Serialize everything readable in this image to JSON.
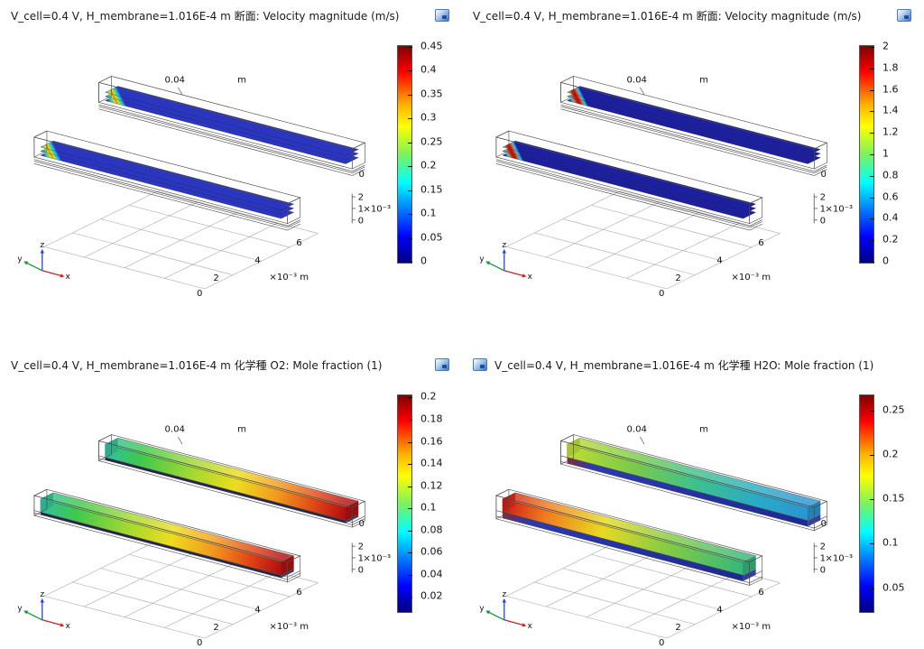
{
  "page": {
    "background": "#ffffff"
  },
  "axes": {
    "length_tick": "0.04",
    "length_unit": "m",
    "y_zero_tick": "0",
    "z_ticks": [
      "2",
      "1",
      "0"
    ],
    "z_unit": "×10⁻³",
    "x_ticks": [
      "2",
      "4",
      "6"
    ],
    "x_origin_tick": "0",
    "x_unit": "×10⁻³ m",
    "triad": {
      "x_label": "x",
      "y_label": "y",
      "z_label": "z",
      "x_color": "#cc2222",
      "y_color": "#119933",
      "z_color": "#2244cc"
    }
  },
  "colormap": [
    [
      "#7f0000",
      0
    ],
    [
      "#ff0000",
      12
    ],
    [
      "#ffb000",
      27
    ],
    [
      "#ffff00",
      37
    ],
    [
      "#7cf25c",
      50
    ],
    [
      "#00ffff",
      63
    ],
    [
      "#0080ff",
      75
    ],
    [
      "#0000ff",
      88
    ],
    [
      "#00007f",
      100
    ]
  ],
  "panels": [
    {
      "id": "velocity-1",
      "title": "V_cell=0.4 V, H_membrane=1.016E-4 m  断面: Velocity magnitude (m/s)",
      "icon_side": "right",
      "colorbar": {
        "ticks": [
          "0.45",
          "0.4",
          "0.35",
          "0.3",
          "0.25",
          "0.2",
          "0.15",
          "0.1",
          "0.05",
          "0"
        ],
        "t0": 0.004,
        "t1": 0.996
      },
      "scene": {
        "mode": "slices",
        "cross_stops": [
          [
            0,
            "#2a35c0"
          ],
          [
            0.15,
            "#19b6e8"
          ],
          [
            0.32,
            "#7ee24a"
          ],
          [
            0.45,
            "#f2d51e"
          ],
          [
            0.5,
            "#e8401a"
          ],
          [
            0.55,
            "#f2d51e"
          ],
          [
            0.68,
            "#7ee24a"
          ],
          [
            0.85,
            "#19b6e8"
          ],
          [
            1,
            "#2a35c0"
          ]
        ]
      }
    },
    {
      "id": "velocity-2",
      "title": "V_cell=0.4 V, H_membrane=1.016E-4 m  断面: Velocity magnitude (m/s)",
      "icon_side": "right",
      "colorbar": {
        "ticks": [
          "2",
          "1.8",
          "1.6",
          "1.4",
          "1.2",
          "1",
          "0.8",
          "0.6",
          "0.4",
          "0.2",
          "0"
        ],
        "t0": 0.004,
        "t1": 0.996
      },
      "scene": {
        "mode": "slices",
        "cross_stops": [
          [
            0,
            "#1c1f9e"
          ],
          [
            0.09,
            "#1e8fe0"
          ],
          [
            0.18,
            "#30c8e8"
          ],
          [
            0.3,
            "#e06018"
          ],
          [
            0.42,
            "#c01212"
          ],
          [
            0.58,
            "#c01212"
          ],
          [
            0.7,
            "#e06018"
          ],
          [
            0.82,
            "#30c8e8"
          ],
          [
            0.91,
            "#1e8fe0"
          ],
          [
            1,
            "#1c1f9e"
          ]
        ]
      }
    },
    {
      "id": "o2-mole-fraction",
      "title": "V_cell=0.4 V, H_membrane=1.016E-4 m  化学種 O2:  Mole fraction (1)",
      "icon_side": "right",
      "colorbar": {
        "ticks": [
          "0.2",
          "0.18",
          "0.16",
          "0.14",
          "0.12",
          "0.1",
          "0.08",
          "0.06",
          "0.04",
          "0.02"
        ],
        "t0": 0.01,
        "t1": 0.93
      },
      "scene": {
        "mode": "bars",
        "back_stops": [
          [
            0,
            "#2fc0a8"
          ],
          [
            0.15,
            "#3ec84e"
          ],
          [
            0.38,
            "#a8d930"
          ],
          [
            0.55,
            "#ecdc1e"
          ],
          [
            0.72,
            "#f29a1e"
          ],
          [
            0.88,
            "#e04414"
          ],
          [
            1,
            "#b31010"
          ]
        ],
        "front_stops": [
          [
            0,
            "#2fc0a8"
          ],
          [
            0.15,
            "#3ec84e"
          ],
          [
            0.38,
            "#a8d930"
          ],
          [
            0.55,
            "#ecdc1e"
          ],
          [
            0.72,
            "#f29a1e"
          ],
          [
            0.88,
            "#e04414"
          ],
          [
            1,
            "#b31010"
          ]
        ],
        "sub": {
          "h": 3,
          "stops": [
            [
              0,
              "#23234d"
            ],
            [
              1,
              "#23234d"
            ]
          ]
        }
      }
    },
    {
      "id": "h2o-mole-fraction",
      "title": "V_cell=0.4 V, H_membrane=1.016E-4 m  化学種 H2O:  Mole fraction (1)",
      "icon_side": "left",
      "colorbar": {
        "ticks": [
          "0.25",
          "0.2",
          "0.15",
          "0.1",
          "0.05"
        ],
        "t0": 0.07,
        "t1": 0.89
      },
      "scene": {
        "mode": "bars",
        "back_stops": [
          [
            0,
            "#c2dc32"
          ],
          [
            0.28,
            "#7bca4b"
          ],
          [
            0.55,
            "#3cc08e"
          ],
          [
            0.8,
            "#2aaac6"
          ],
          [
            1,
            "#2b96d2"
          ]
        ],
        "front_stops": [
          [
            0,
            "#cc1616"
          ],
          [
            0.18,
            "#ef7a1e"
          ],
          [
            0.42,
            "#e8d922"
          ],
          [
            0.68,
            "#86cc42"
          ],
          [
            1,
            "#36b87a"
          ]
        ],
        "sub": {
          "h": 7,
          "stops": [
            [
              0,
              "#93252b"
            ],
            [
              0.12,
              "#2b3ab2"
            ],
            [
              1,
              "#1b2a96"
            ]
          ]
        }
      }
    }
  ],
  "chart_data": [
    {
      "type": "3d-slice-plot",
      "title": "V_cell=0.4 V, H_membrane=1.016E-4 m 断面: Velocity magnitude (m/s)",
      "quantity": "Velocity magnitude",
      "unit": "m/s",
      "color_range": [
        0,
        0.45
      ],
      "colorbar_ticks": [
        0.45,
        0.4,
        0.35,
        0.3,
        0.25,
        0.2,
        0.15,
        0.1,
        0.05,
        0
      ],
      "x_axis": {
        "ticks": [
          0,
          2,
          4,
          6
        ],
        "unit": "×10⁻³ m"
      },
      "y_axis": {
        "ticks": [
          0,
          0.04
        ],
        "unit": "m"
      },
      "z_axis": {
        "ticks": [
          0,
          1,
          2
        ],
        "unit": "×10⁻³"
      },
      "colormap": "rainbow",
      "geometry": "two parallel fuel-cell gas channels, velocity slices blue at walls and red at core"
    },
    {
      "type": "3d-slice-plot",
      "title": "V_cell=0.4 V, H_membrane=1.016E-4 m 断面: Velocity magnitude (m/s)",
      "quantity": "Velocity magnitude",
      "unit": "m/s",
      "color_range": [
        0,
        2
      ],
      "colorbar_ticks": [
        2,
        1.8,
        1.6,
        1.4,
        1.2,
        1,
        0.8,
        0.6,
        0.4,
        0.2,
        0
      ],
      "x_axis": {
        "ticks": [
          0,
          2,
          4,
          6
        ],
        "unit": "×10⁻³ m"
      },
      "y_axis": {
        "ticks": [
          0,
          0.04
        ],
        "unit": "m"
      },
      "z_axis": {
        "ticks": [
          0,
          1,
          2
        ],
        "unit": "×10⁻³"
      },
      "colormap": "rainbow",
      "geometry": "two parallel fuel-cell gas channels, velocity slices blue at walls and red at core"
    },
    {
      "type": "3d-volume-plot",
      "title": "V_cell=0.4 V, H_membrane=1.016E-4 m 化学種 O2: Mole fraction (1)",
      "quantity": "O2 mole fraction",
      "unit": "1",
      "color_range": [
        0.02,
        0.2
      ],
      "colorbar_ticks": [
        0.2,
        0.18,
        0.16,
        0.14,
        0.12,
        0.1,
        0.08,
        0.06,
        0.04,
        0.02
      ],
      "x_axis": {
        "ticks": [
          0,
          2,
          4,
          6
        ],
        "unit": "×10⁻³ m"
      },
      "y_axis": {
        "ticks": [
          0,
          0.04
        ],
        "unit": "m"
      },
      "z_axis": {
        "ticks": [
          0,
          1,
          2
        ],
        "unit": "×10⁻³"
      },
      "colormap": "rainbow",
      "geometry": "channels colored green-cyan at inlet rising to red at outlet"
    },
    {
      "type": "3d-volume-plot",
      "title": "V_cell=0.4 V, H_membrane=1.016E-4 m 化学種 H2O: Mole fraction (1)",
      "quantity": "H2O mole fraction",
      "unit": "1",
      "color_range": [
        0.05,
        0.25
      ],
      "colorbar_ticks": [
        0.25,
        0.2,
        0.15,
        0.1,
        0.05
      ],
      "x_axis": {
        "ticks": [
          0,
          2,
          4,
          6
        ],
        "unit": "×10⁻³ m"
      },
      "y_axis": {
        "ticks": [
          0,
          0.04
        ],
        "unit": "m"
      },
      "z_axis": {
        "ticks": [
          0,
          1,
          2
        ],
        "unit": "×10⁻³"
      },
      "colormap": "rainbow",
      "geometry": "front channel red at inlet fading to green, back channel yellow-green fading to cyan, blue sub-layers"
    }
  ]
}
